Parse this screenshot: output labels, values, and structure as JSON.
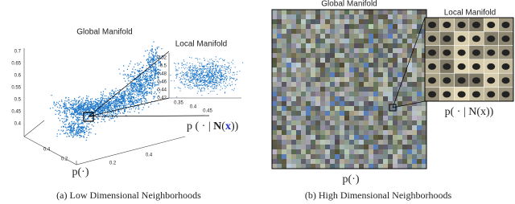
{
  "panel_a": {
    "global_label": "Global Manifold",
    "local_label": "Local Manifold",
    "z_ticks": [
      "0.7",
      "0.65",
      "0.6",
      "0.55",
      "0.5",
      "0.45",
      "0.4"
    ],
    "floor_left_ticks": [
      "0.4",
      "0.2"
    ],
    "floor_right_ticks": [
      "0.2",
      "0.4"
    ],
    "local_y_ticks": [
      "0.52",
      "0.5",
      "0.48",
      "0.46",
      "0.44",
      "0.42"
    ],
    "local_x_ticks": [
      "0.35",
      "0.4",
      "0.45"
    ],
    "global_axis_label": "p(·)",
    "local_axis_label": [
      "p ( · | ",
      "N",
      "(",
      "x",
      "))"
    ],
    "caption": "(a)  Low Dimensional Neighborhoods"
  },
  "panel_b": {
    "global_label": "Global Manifold",
    "local_label": "Local Manifold",
    "global_axis_label": "p(·)",
    "local_axis_label": "p( · | N(x))",
    "caption": "(b)  High Dimensional Neighborhoods"
  }
}
